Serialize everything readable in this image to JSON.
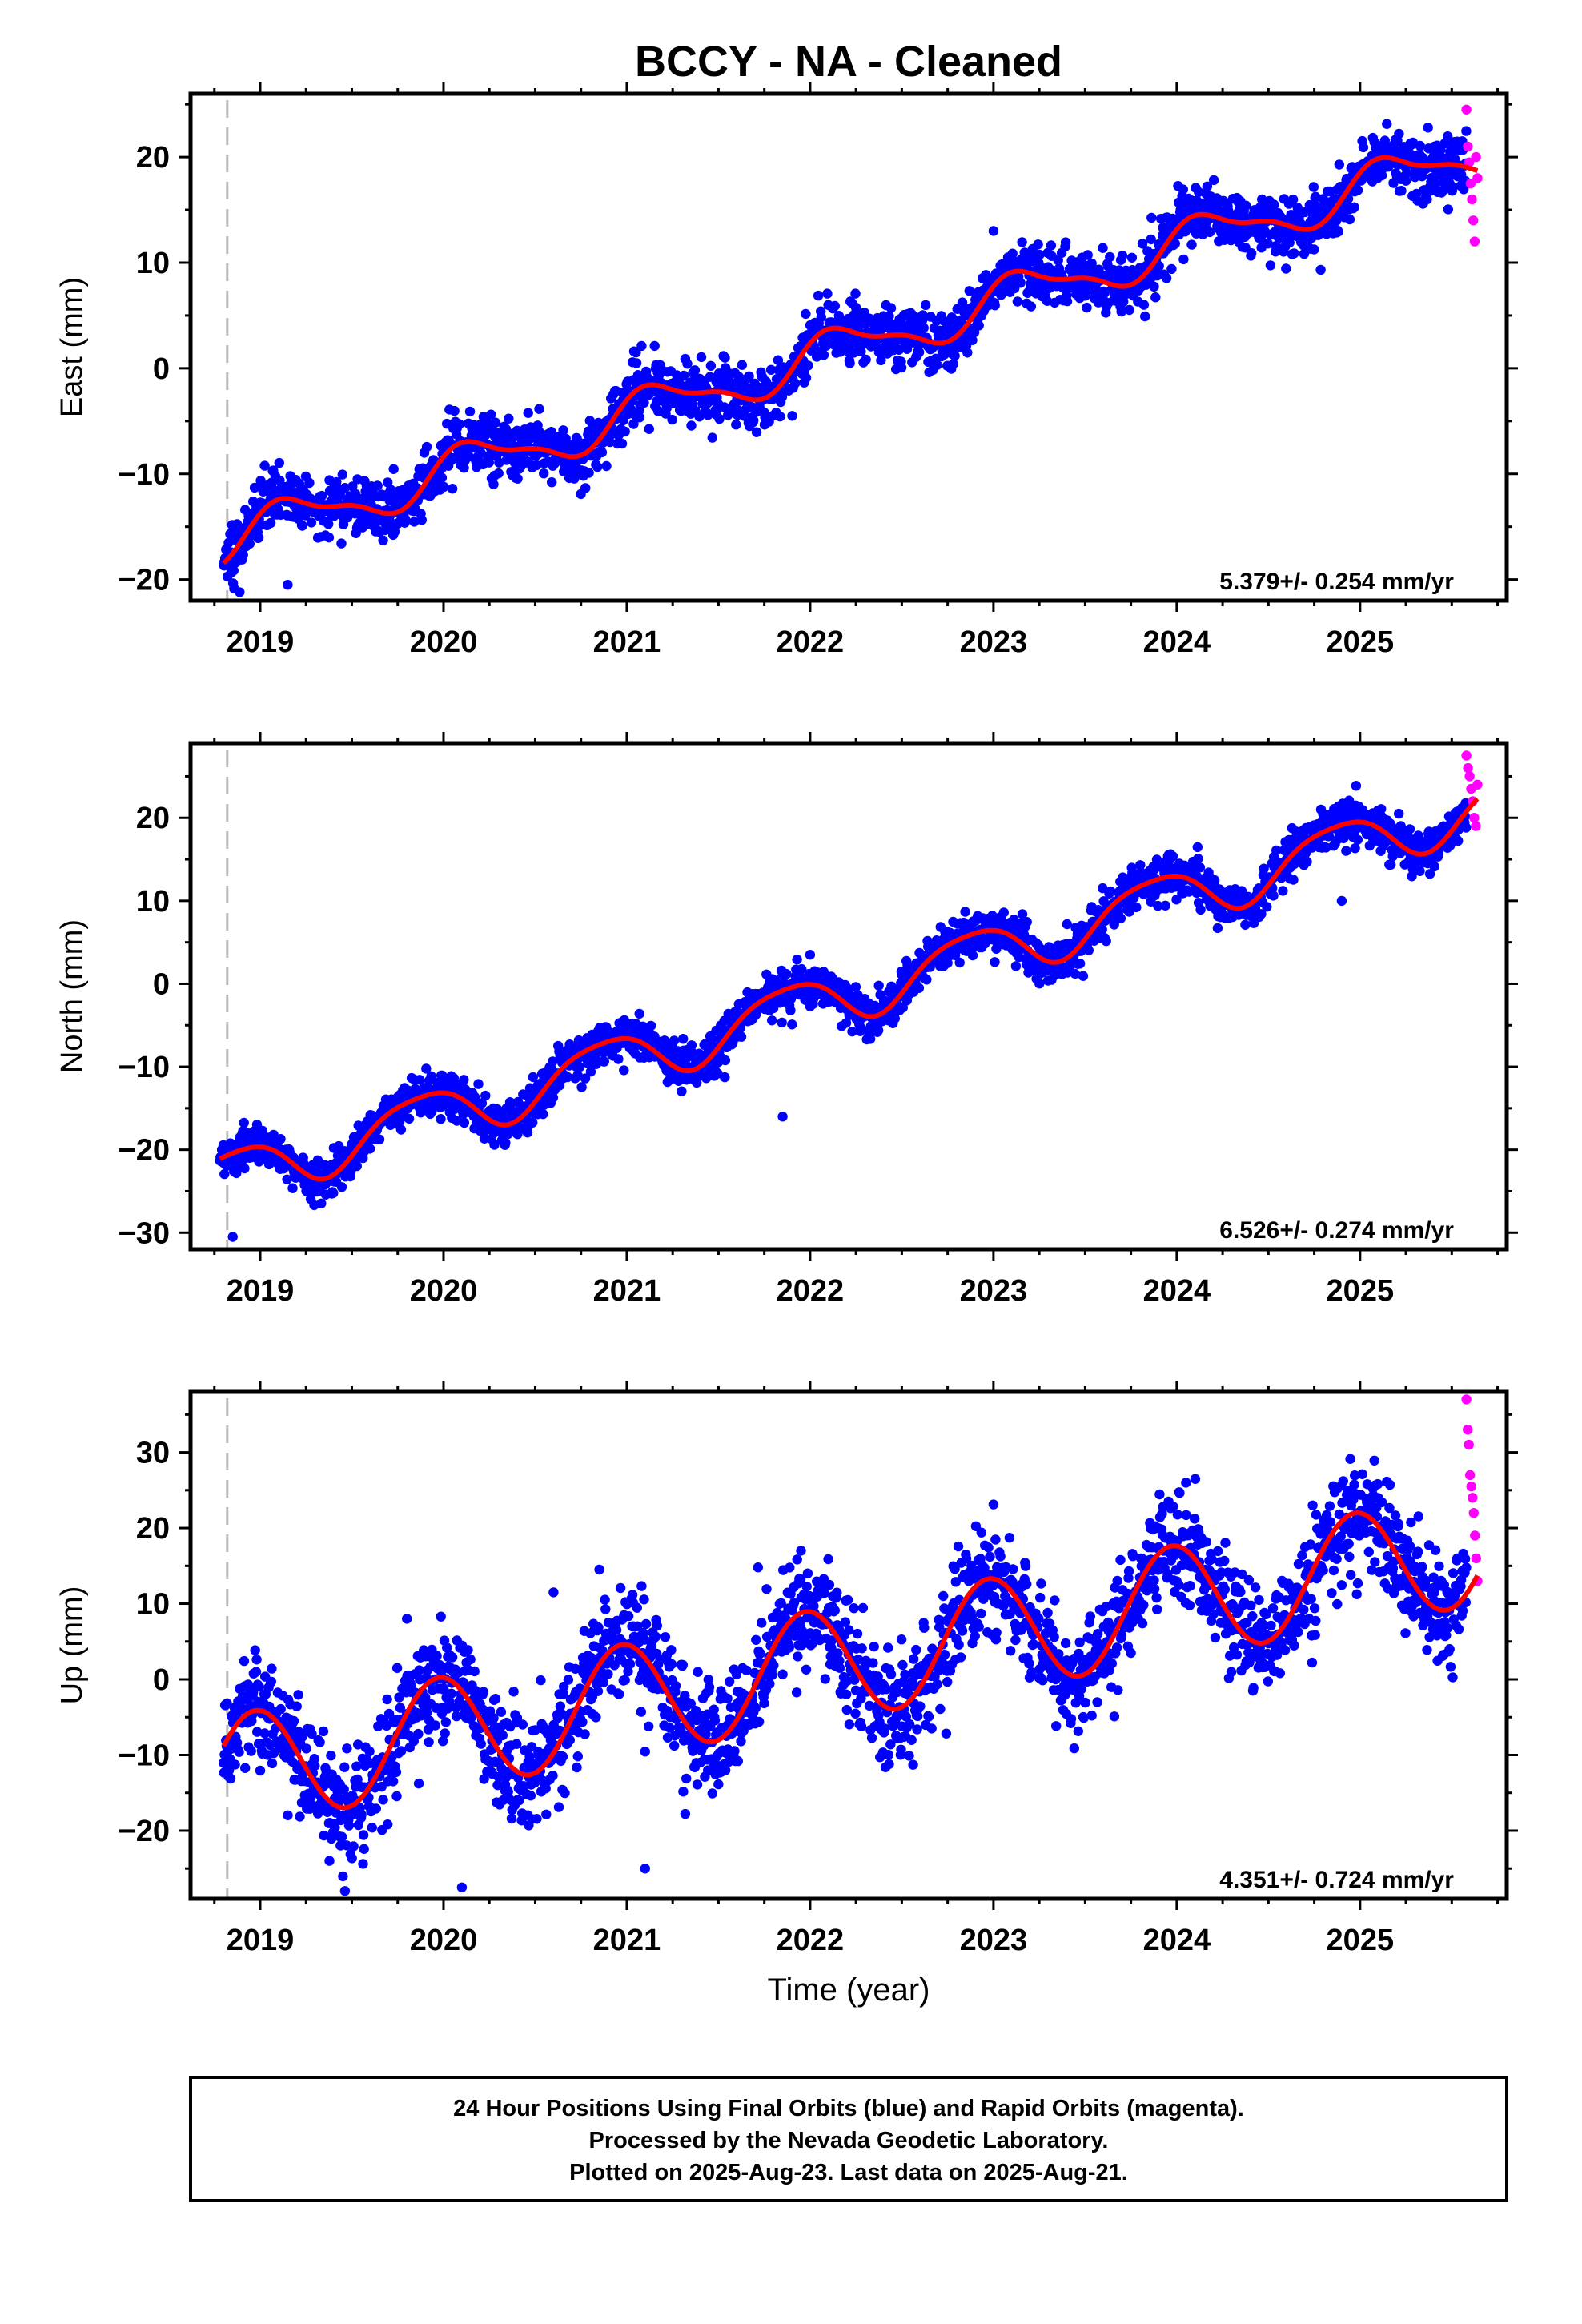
{
  "figure": {
    "title": "BCCY  - NA - Cleaned",
    "xlabel": "Time (year)",
    "footer": [
      "24 Hour Positions Using Final Orbits (blue) and Rapid Orbits (magenta).",
      "Processed by the Nevada Geodetic Laboratory.",
      "Plotted on 2025-Aug-23. Last data on 2025-Aug-21."
    ],
    "colors": {
      "final": "#0000ff",
      "rapid": "#ff00ff",
      "fit": "#ff0000",
      "dashed": "#bbbbbb"
    }
  },
  "chart_data": [
    {
      "type": "scatter",
      "ylabel": "East (mm)",
      "rate": "5.379+/- 0.254 mm/yr",
      "xlim": [
        2018.62,
        2025.8
      ],
      "ylim": [
        -22,
        26
      ],
      "xticks": [
        "2019",
        "2020",
        "2021",
        "2022",
        "2023",
        "2024",
        "2025"
      ],
      "yticks": [
        "20",
        "10",
        "0",
        "−10",
        "−20"
      ],
      "ytick_values": [
        20,
        10,
        0,
        -10,
        -20
      ],
      "start_marker_x": 2018.82,
      "data_start": 2018.8,
      "data_end": 2025.58,
      "rapid_start": 2025.58,
      "rapid_end": 2025.64,
      "fit": {
        "intercept": -15.3,
        "rate": 5.379,
        "annual_amp": 2.0,
        "annual_phase": 0.5,
        "semiannual_amp": 0.7,
        "semiannual_phase": 1.0
      },
      "noise": 1.4,
      "outliers": [
        [
          2023.0,
          13.0
        ],
        [
          2024.2,
          16.0
        ],
        [
          2021.05,
          1.5
        ],
        [
          2019.15,
          -20.5
        ]
      ],
      "rapid_values": [
        24.5,
        21.0,
        19.5,
        17.5,
        16.0,
        14.0,
        12.0,
        20.0,
        18.0
      ],
      "series": [
        {
          "name": "Final Orbits (blue)"
        },
        {
          "name": "Rapid Orbits (magenta)"
        }
      ]
    },
    {
      "type": "scatter",
      "ylabel": "North (mm)",
      "rate": "6.526+/- 0.274 mm/yr",
      "xlim": [
        2018.62,
        2025.8
      ],
      "ylim": [
        -32,
        29
      ],
      "xticks": [
        "2019",
        "2020",
        "2021",
        "2022",
        "2023",
        "2024",
        "2025"
      ],
      "yticks": [
        "20",
        "10",
        "0",
        "−10",
        "−20",
        "−30"
      ],
      "ytick_values": [
        20,
        10,
        0,
        -10,
        -20,
        -30
      ],
      "start_marker_x": 2018.82,
      "data_start": 2018.78,
      "data_end": 2025.58,
      "rapid_start": 2025.58,
      "rapid_end": 2025.64,
      "fit": {
        "intercept": -22.0,
        "rate": 6.526,
        "annual_amp": 3.2,
        "annual_phase": 2.4,
        "semiannual_amp": 0.6,
        "semiannual_phase": 0.3
      },
      "noise": 1.3,
      "outliers": [
        [
          2018.85,
          -30.5
        ],
        [
          2021.85,
          -16.0
        ],
        [
          2024.9,
          10.0
        ],
        [
          2022.0,
          3.5
        ]
      ],
      "rapid_values": [
        27.5,
        26.0,
        25.0,
        23.5,
        22.0,
        20.0,
        19.0,
        24.0
      ],
      "series": [
        {
          "name": "Final Orbits (blue)"
        },
        {
          "name": "Rapid Orbits (magenta)"
        }
      ]
    },
    {
      "type": "scatter",
      "ylabel": "Up (mm)",
      "rate": "4.351+/- 0.724 mm/yr",
      "xlim": [
        2018.62,
        2025.8
      ],
      "ylim": [
        -29,
        38
      ],
      "xticks": [
        "2019",
        "2020",
        "2021",
        "2022",
        "2023",
        "2024",
        "2025"
      ],
      "yticks": [
        "30",
        "20",
        "10",
        "0",
        "−10",
        "−20"
      ],
      "ytick_values": [
        30,
        20,
        10,
        0,
        -10,
        -20
      ],
      "start_marker_x": 2018.82,
      "data_start": 2018.8,
      "data_end": 2025.58,
      "rapid_start": 2025.58,
      "rapid_end": 2025.64,
      "fit": {
        "intercept": -11.5,
        "rate": 4.351,
        "annual_amp": 7.5,
        "annual_phase": 1.75,
        "semiannual_amp": 0.0,
        "semiannual_phase": 0.0
      },
      "noise": 3.6,
      "outliers": [
        [
          2021.1,
          -25.0
        ],
        [
          2019.8,
          8.0
        ],
        [
          2020.6,
          11.5
        ],
        [
          2020.85,
          14.5
        ],
        [
          2021.95,
          17.0
        ],
        [
          2024.05,
          26.0
        ],
        [
          2020.1,
          -27.5
        ]
      ],
      "rapid_values": [
        37.0,
        33.0,
        31.0,
        27.0,
        25.5,
        24.0,
        22.0,
        19.0,
        16.0,
        13.0
      ],
      "series": [
        {
          "name": "Final Orbits (blue)"
        },
        {
          "name": "Rapid Orbits (magenta)"
        }
      ]
    }
  ]
}
